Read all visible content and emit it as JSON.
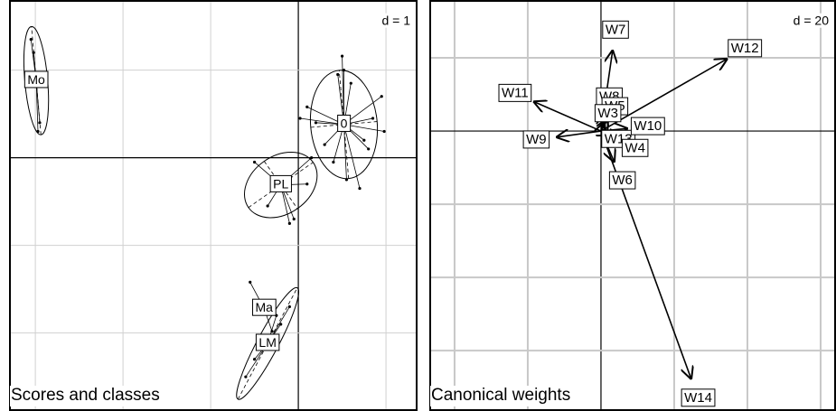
{
  "chart_data": [
    {
      "type": "scatter",
      "title": "Scores and classes",
      "annotation": "d = 1",
      "xlim": [
        -3.3,
        1.36
      ],
      "ylim": [
        -2.89,
        1.8
      ],
      "xticks": [
        -3,
        -2,
        -1,
        0,
        1
      ],
      "yticks": [
        1,
        0,
        -1,
        -2
      ],
      "grid": true,
      "series": [
        {
          "name": "Mo",
          "center": [
            -2.99,
            0.88
          ],
          "ellipse": [
            0.62,
            0.13,
            95
          ],
          "x": [
            -3.05,
            -2.97,
            -2.95,
            -3.02
          ],
          "y": [
            1.35,
            0.3,
            0.4,
            1.2
          ]
        },
        {
          "name": "0",
          "center": [
            0.52,
            0.38
          ],
          "ellipse": [
            0.62,
            0.38,
            95
          ],
          "x": [
            0.5,
            0.52,
            0.45,
            0.6,
            0.95,
            0.98,
            0.1,
            0.02,
            0.2,
            0.8,
            0.85,
            0.3,
            0.7,
            0.4,
            0.55,
            0.75
          ],
          "y": [
            1.16,
            1.0,
            0.95,
            0.85,
            0.7,
            0.3,
            0.58,
            0.45,
            0.4,
            0.1,
            0.45,
            0.15,
            -0.35,
            -0.05,
            -0.25,
            0.2
          ]
        },
        {
          "name": "PL",
          "center": [
            -0.2,
            -0.31
          ],
          "ellipse": [
            0.45,
            0.33,
            35
          ],
          "x": [
            -0.5,
            0.1,
            -0.05,
            -0.35,
            0.15,
            -0.1
          ],
          "y": [
            -0.05,
            -0.3,
            -0.7,
            -0.55,
            0.0,
            -0.75
          ]
        },
        {
          "name": "Ma",
          "center": [
            -0.39,
            -1.72
          ],
          "ellipse": [
            0.05,
            0.05,
            0
          ],
          "x": [
            -0.55,
            -0.3
          ],
          "y": [
            -1.42,
            -1.98
          ]
        },
        {
          "name": "LM",
          "center": [
            -0.35,
            -2.12
          ],
          "ellipse": [
            0.72,
            0.12,
            62
          ],
          "x": [
            -0.6,
            -0.1,
            -0.2,
            -0.5,
            -0.25
          ],
          "y": [
            -2.5,
            -1.7,
            -1.9,
            -2.3,
            -1.8
          ]
        }
      ]
    },
    {
      "type": "arrow",
      "title": "Canonical weights",
      "annotation": "d = 20",
      "xlim": [
        -46.9,
        64.2
      ],
      "ylim": [
        -76.5,
        35.8
      ],
      "xticks": [
        -40,
        -20,
        0,
        20,
        40,
        60
      ],
      "yticks": [
        20,
        0,
        -20,
        -40,
        -60
      ],
      "grid": true,
      "labels": [
        "W7",
        "W12",
        "W11",
        "W8",
        "W5",
        "W3",
        "W9",
        "W13",
        "W10",
        "W4",
        "W6",
        "W14"
      ],
      "x": [
        3.2,
        34.6,
        -18.5,
        1.2,
        2.0,
        1.0,
        -12.3,
        2.5,
        7.4,
        4.9,
        3.7,
        24.7
      ],
      "y": [
        22.2,
        19.8,
        8.1,
        4.9,
        3.5,
        2.5,
        -1.7,
        -1.2,
        0.7,
        -2.5,
        -8.6,
        -67.9
      ]
    }
  ]
}
